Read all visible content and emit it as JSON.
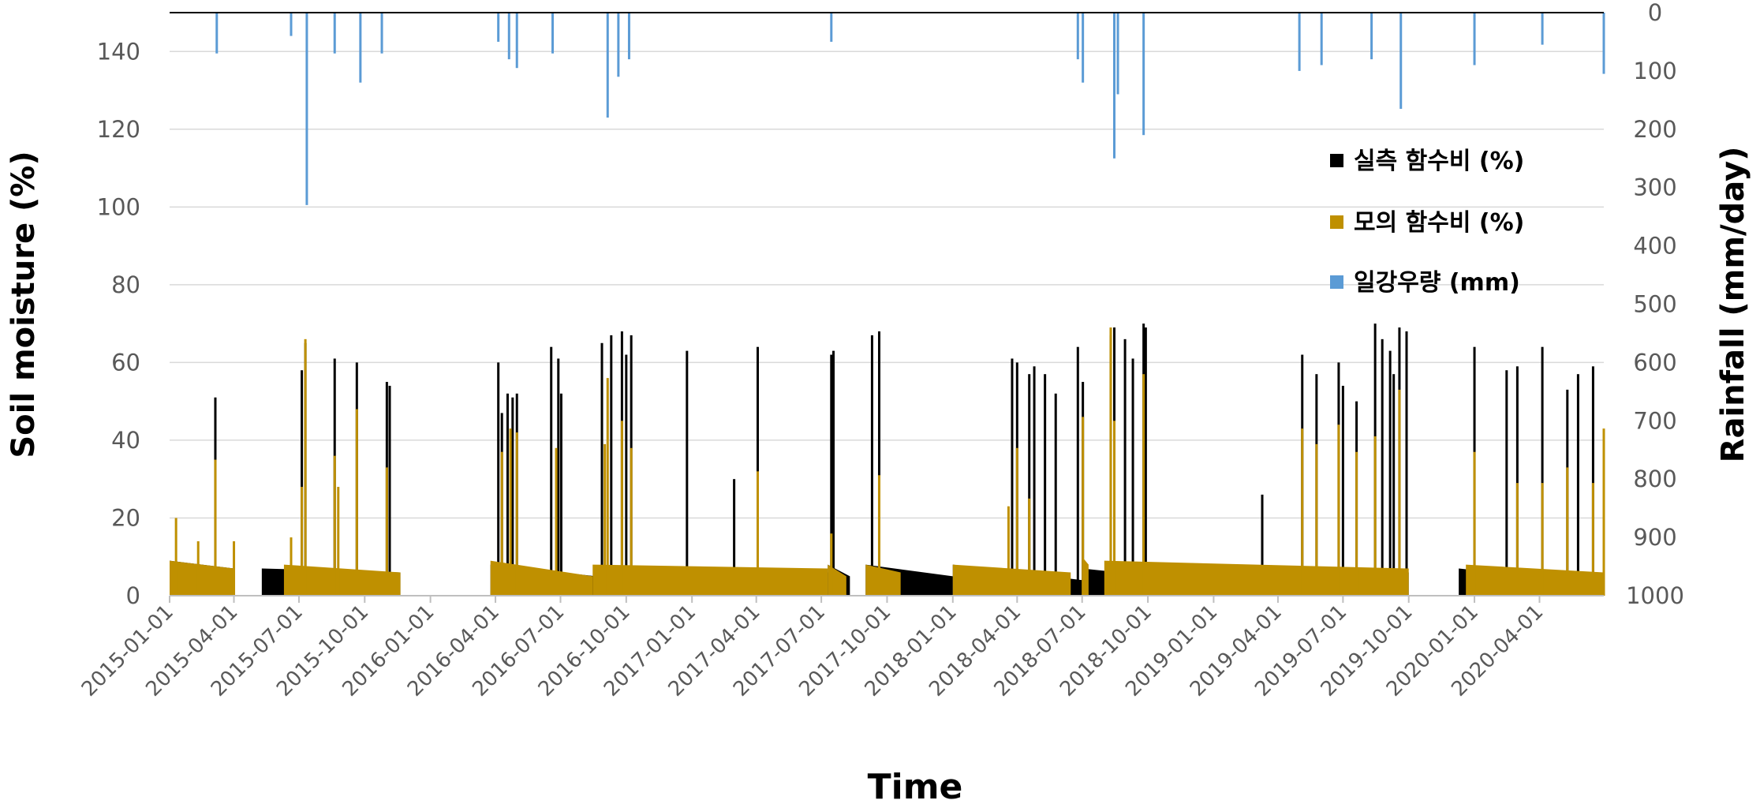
{
  "chart_data": {
    "type": "bar",
    "xlabel": "Time",
    "ylabel_left": "Soil moisture (%)",
    "ylabel_right": "Rainfall (mm/day)",
    "ylim_left": [
      0,
      150
    ],
    "ylim_right_inverted": [
      0,
      1000
    ],
    "yticks_left": [
      "0",
      "20",
      "40",
      "60",
      "80",
      "100",
      "120",
      "140"
    ],
    "yticks_right": [
      "0",
      "100",
      "200",
      "300",
      "400",
      "500",
      "600",
      "700",
      "800",
      "900",
      "1000"
    ],
    "xticks": [
      "2015-01-01",
      "2015-04-01",
      "2015-07-01",
      "2015-10-01",
      "2016-01-01",
      "2016-04-01",
      "2016-07-01",
      "2016-10-01",
      "2017-01-01",
      "2017-04-01",
      "2017-07-01",
      "2017-10-01",
      "2018-01-01",
      "2018-04-01",
      "2018-07-01",
      "2018-10-01",
      "2019-01-01",
      "2019-04-01",
      "2019-07-01",
      "2019-10-01",
      "2020-01-01",
      "2020-04-01"
    ],
    "x_range": [
      "2015-01-01",
      "2020-06-30"
    ],
    "grid": "horizontal",
    "legend_position": "right",
    "legend": [
      {
        "label": "실측 함수비 (%)",
        "color": "#000000"
      },
      {
        "label": "모의 함수비 (%)",
        "color": "#bf9000"
      },
      {
        "label": "일강우량 (mm)",
        "color": "#5b9bd5"
      }
    ],
    "series": [
      {
        "name": "실측 함수비 (%)",
        "axis": "left",
        "color": "#000000",
        "baseline_segments": [
          {
            "start": "2015-01-01",
            "end": "2015-04-01",
            "from": 9,
            "to": 7
          },
          {
            "start": "2015-05-10",
            "end": "2015-11-20",
            "from": 7,
            "to": 6
          },
          {
            "start": "2016-03-25",
            "end": "2016-08-20",
            "from": 8,
            "to": 5
          },
          {
            "start": "2016-08-20",
            "end": "2017-07-10",
            "from": 7,
            "to": 6
          },
          {
            "start": "2017-07-10",
            "end": "2017-08-10",
            "from": 8,
            "to": 5
          },
          {
            "start": "2017-09-01",
            "end": "2018-01-01",
            "from": 8,
            "to": 5
          },
          {
            "start": "2018-01-01",
            "end": "2018-07-01",
            "from": 8,
            "to": 4
          },
          {
            "start": "2018-07-01",
            "end": "2018-10-15",
            "from": 7,
            "to": 5
          },
          {
            "start": "2018-10-15",
            "end": "2019-10-01",
            "from": 8,
            "to": 6
          },
          {
            "start": "2019-12-10",
            "end": "2020-06-30",
            "from": 7,
            "to": 3
          }
        ],
        "peaks": [
          {
            "date": "2015-03-06",
            "value": 51
          },
          {
            "date": "2015-07-05",
            "value": 58
          },
          {
            "date": "2015-07-10",
            "value": 65
          },
          {
            "date": "2015-08-20",
            "value": 61
          },
          {
            "date": "2015-09-20",
            "value": 60
          },
          {
            "date": "2015-11-01",
            "value": 55
          },
          {
            "date": "2015-11-05",
            "value": 54
          },
          {
            "date": "2016-04-05",
            "value": 60
          },
          {
            "date": "2016-04-10",
            "value": 47
          },
          {
            "date": "2016-04-18",
            "value": 52
          },
          {
            "date": "2016-04-25",
            "value": 51
          },
          {
            "date": "2016-05-01",
            "value": 52
          },
          {
            "date": "2016-06-18",
            "value": 64
          },
          {
            "date": "2016-06-28",
            "value": 61
          },
          {
            "date": "2016-07-02",
            "value": 52
          },
          {
            "date": "2016-08-28",
            "value": 65
          },
          {
            "date": "2016-09-10",
            "value": 67
          },
          {
            "date": "2016-09-25",
            "value": 68
          },
          {
            "date": "2016-10-01",
            "value": 62
          },
          {
            "date": "2016-10-08",
            "value": 67
          },
          {
            "date": "2016-12-25",
            "value": 63
          },
          {
            "date": "2017-03-01",
            "value": 30
          },
          {
            "date": "2017-04-03",
            "value": 64
          },
          {
            "date": "2017-07-15",
            "value": 62
          },
          {
            "date": "2017-07-18",
            "value": 63
          },
          {
            "date": "2017-09-10",
            "value": 67
          },
          {
            "date": "2017-09-20",
            "value": 68
          },
          {
            "date": "2018-03-25",
            "value": 61
          },
          {
            "date": "2018-04-01",
            "value": 60
          },
          {
            "date": "2018-04-18",
            "value": 57
          },
          {
            "date": "2018-04-25",
            "value": 59
          },
          {
            "date": "2018-05-10",
            "value": 57
          },
          {
            "date": "2018-05-25",
            "value": 52
          },
          {
            "date": "2018-06-25",
            "value": 64
          },
          {
            "date": "2018-07-02",
            "value": 55
          },
          {
            "date": "2018-08-10",
            "value": 67
          },
          {
            "date": "2018-08-15",
            "value": 69
          },
          {
            "date": "2018-08-30",
            "value": 66
          },
          {
            "date": "2018-09-10",
            "value": 61
          },
          {
            "date": "2018-09-25",
            "value": 70
          },
          {
            "date": "2018-09-28",
            "value": 69
          },
          {
            "date": "2019-03-10",
            "value": 26
          },
          {
            "date": "2019-05-05",
            "value": 62
          },
          {
            "date": "2019-05-25",
            "value": 57
          },
          {
            "date": "2019-06-25",
            "value": 60
          },
          {
            "date": "2019-07-01",
            "value": 54
          },
          {
            "date": "2019-07-20",
            "value": 50
          },
          {
            "date": "2019-08-15",
            "value": 70
          },
          {
            "date": "2019-08-25",
            "value": 66
          },
          {
            "date": "2019-09-05",
            "value": 63
          },
          {
            "date": "2019-09-10",
            "value": 57
          },
          {
            "date": "2019-09-18",
            "value": 69
          },
          {
            "date": "2019-09-28",
            "value": 68
          },
          {
            "date": "2020-01-01",
            "value": 64
          },
          {
            "date": "2020-02-15",
            "value": 58
          },
          {
            "date": "2020-03-01",
            "value": 59
          },
          {
            "date": "2020-04-05",
            "value": 64
          },
          {
            "date": "2020-05-10",
            "value": 53
          },
          {
            "date": "2020-05-25",
            "value": 57
          },
          {
            "date": "2020-06-15",
            "value": 59
          }
        ]
      },
      {
        "name": "모의 함수비 (%)",
        "axis": "left",
        "color": "#bf9000",
        "baseline_segments": [
          {
            "start": "2015-01-01",
            "end": "2015-04-01",
            "from": 9,
            "to": 7
          },
          {
            "start": "2015-06-10",
            "end": "2015-11-20",
            "from": 8,
            "to": 6
          },
          {
            "start": "2016-03-25",
            "end": "2016-08-15",
            "from": 9,
            "to": 5
          },
          {
            "start": "2016-08-15",
            "end": "2017-07-10",
            "from": 8,
            "to": 7
          },
          {
            "start": "2017-07-10",
            "end": "2017-08-05",
            "from": 8,
            "to": 5
          },
          {
            "start": "2017-09-01",
            "end": "2017-10-20",
            "from": 8,
            "to": 6
          },
          {
            "start": "2018-01-01",
            "end": "2018-06-15",
            "from": 8,
            "to": 6
          },
          {
            "start": "2018-07-01",
            "end": "2018-07-10",
            "from": 10,
            "to": 8
          },
          {
            "start": "2018-08-01",
            "end": "2019-10-01",
            "from": 9,
            "to": 7
          },
          {
            "start": "2019-12-20",
            "end": "2020-06-30",
            "from": 8,
            "to": 6
          }
        ],
        "peaks": [
          {
            "date": "2015-01-10",
            "value": 20
          },
          {
            "date": "2015-02-10",
            "value": 14
          },
          {
            "date": "2015-03-06",
            "value": 35
          },
          {
            "date": "2015-04-01",
            "value": 14
          },
          {
            "date": "2015-06-20",
            "value": 15
          },
          {
            "date": "2015-07-05",
            "value": 28
          },
          {
            "date": "2015-07-10",
            "value": 66
          },
          {
            "date": "2015-08-20",
            "value": 36
          },
          {
            "date": "2015-08-25",
            "value": 28
          },
          {
            "date": "2015-09-20",
            "value": 48
          },
          {
            "date": "2015-11-01",
            "value": 33
          },
          {
            "date": "2016-04-10",
            "value": 37
          },
          {
            "date": "2016-04-22",
            "value": 43
          },
          {
            "date": "2016-05-01",
            "value": 42
          },
          {
            "date": "2016-06-25",
            "value": 38
          },
          {
            "date": "2016-09-01",
            "value": 39
          },
          {
            "date": "2016-09-05",
            "value": 56
          },
          {
            "date": "2016-09-25",
            "value": 45
          },
          {
            "date": "2016-10-08",
            "value": 38
          },
          {
            "date": "2017-04-03",
            "value": 32
          },
          {
            "date": "2017-07-15",
            "value": 16
          },
          {
            "date": "2017-09-20",
            "value": 31
          },
          {
            "date": "2018-03-20",
            "value": 23
          },
          {
            "date": "2018-04-01",
            "value": 38
          },
          {
            "date": "2018-04-18",
            "value": 25
          },
          {
            "date": "2018-07-02",
            "value": 46
          },
          {
            "date": "2018-08-10",
            "value": 69
          },
          {
            "date": "2018-08-15",
            "value": 45
          },
          {
            "date": "2018-09-25",
            "value": 57
          },
          {
            "date": "2019-05-05",
            "value": 43
          },
          {
            "date": "2019-05-25",
            "value": 39
          },
          {
            "date": "2019-06-25",
            "value": 44
          },
          {
            "date": "2019-07-20",
            "value": 37
          },
          {
            "date": "2019-08-15",
            "value": 41
          },
          {
            "date": "2019-09-18",
            "value": 53
          },
          {
            "date": "2020-01-01",
            "value": 37
          },
          {
            "date": "2020-03-01",
            "value": 29
          },
          {
            "date": "2020-04-05",
            "value": 29
          },
          {
            "date": "2020-05-10",
            "value": 33
          },
          {
            "date": "2020-06-15",
            "value": 29
          },
          {
            "date": "2020-06-30",
            "value": 43
          }
        ]
      },
      {
        "name": "일강우량 (mm)",
        "axis": "right_inverted",
        "color": "#5b9bd5",
        "peaks": [
          {
            "date": "2015-03-08",
            "value": 70
          },
          {
            "date": "2015-06-20",
            "value": 40
          },
          {
            "date": "2015-07-12",
            "value": 330
          },
          {
            "date": "2015-08-20",
            "value": 70
          },
          {
            "date": "2015-09-25",
            "value": 120
          },
          {
            "date": "2015-10-25",
            "value": 70
          },
          {
            "date": "2016-04-05",
            "value": 50
          },
          {
            "date": "2016-04-20",
            "value": 80
          },
          {
            "date": "2016-05-01",
            "value": 95
          },
          {
            "date": "2016-06-20",
            "value": 70
          },
          {
            "date": "2016-09-05",
            "value": 180
          },
          {
            "date": "2016-09-20",
            "value": 110
          },
          {
            "date": "2016-10-05",
            "value": 80
          },
          {
            "date": "2017-07-15",
            "value": 50
          },
          {
            "date": "2018-06-25",
            "value": 80
          },
          {
            "date": "2018-07-02",
            "value": 120
          },
          {
            "date": "2018-08-15",
            "value": 250
          },
          {
            "date": "2018-08-20",
            "value": 140
          },
          {
            "date": "2018-09-25",
            "value": 210
          },
          {
            "date": "2019-05-01",
            "value": 100
          },
          {
            "date": "2019-06-01",
            "value": 90
          },
          {
            "date": "2019-08-10",
            "value": 80
          },
          {
            "date": "2019-09-20",
            "value": 165
          },
          {
            "date": "2020-01-01",
            "value": 90
          },
          {
            "date": "2020-04-05",
            "value": 55
          },
          {
            "date": "2020-06-30",
            "value": 105
          }
        ]
      }
    ]
  }
}
